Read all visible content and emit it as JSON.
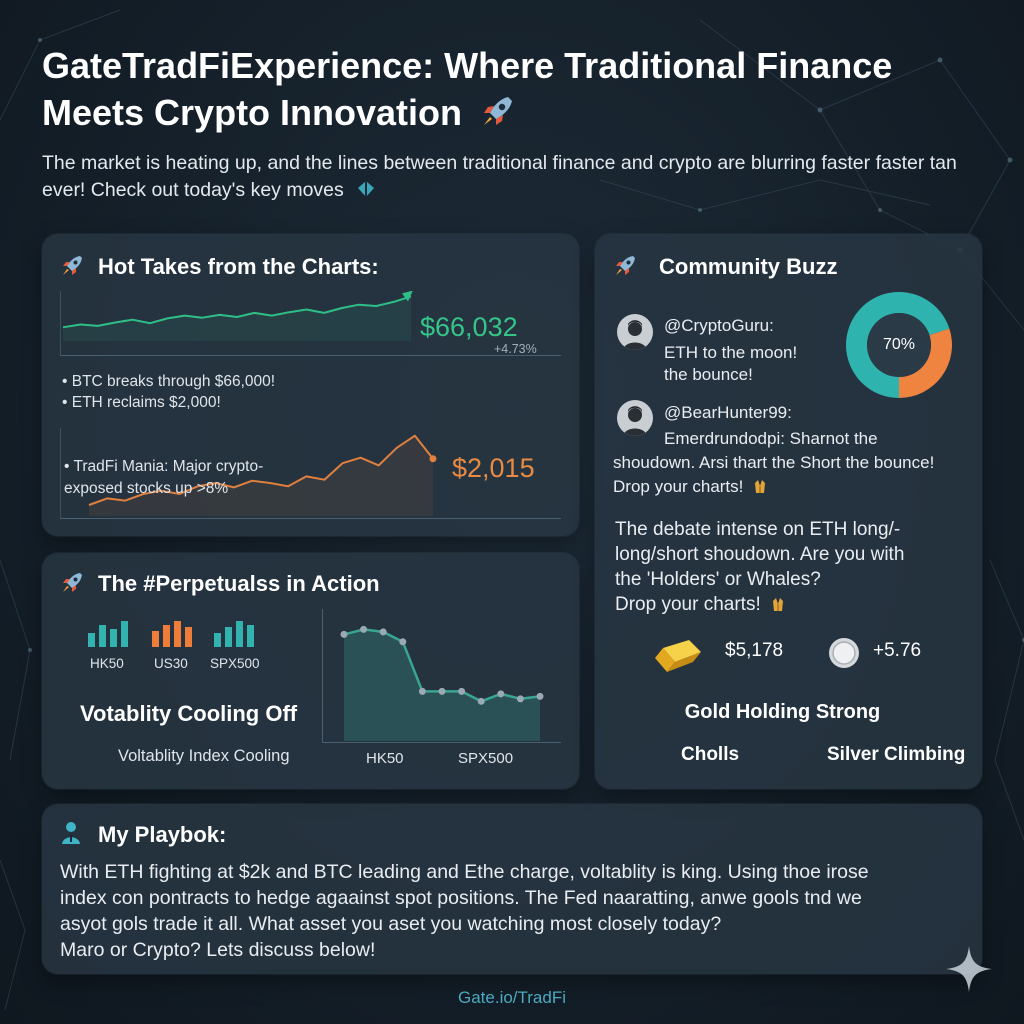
{
  "header": {
    "title": "GateTradFiExperience: Where Traditional Finance Meets Crypto Innovation",
    "intro": "The market is heating up, and the lines between traditional finance and crypto are blurring faster faster tan ever! Check out today's key moves"
  },
  "hot_takes": {
    "title": "Hot Takes from the Charts:",
    "btc_price": "$66,032",
    "btc_change": "+4.73%",
    "bullets": [
      "• BTC breaks through $66,000!",
      "• ETH reclaims $2,000!"
    ],
    "tradfi_line1": "• TradFi Mania: Major crypto-",
    "tradfi_line2": "exposed stocks up >8%",
    "eth_price": "$2,015"
  },
  "perpetuals": {
    "title": "The #Perpetualss in Action",
    "indices": [
      "HK50",
      "US30",
      "SPX500"
    ],
    "volatility_heading": "Votablity Cooling Off",
    "volatility_sub": "Voltablity Index Cooling",
    "chart_labels": [
      "HK50",
      "SPX500"
    ]
  },
  "community": {
    "title": "Community Buzz",
    "post1_user": "@CryptoGuru:",
    "post1_line1": "ETH to the moon!",
    "post1_line2": "the bounce!",
    "donut_label": "70%",
    "post2_user": "@BearHunter99:",
    "post2_line1": "Emerdrundodpi: Sharnot the",
    "post2_line2": "shoudown. Arsi thart the Short the bounce!",
    "post2_line3": "Drop your charts!",
    "debate": [
      "The debate intense on ETH long/-",
      "long/short shoudown. Are you with",
      "the 'Holders' or Whales?",
      "Drop your charts!"
    ],
    "gold_price": "$5,178",
    "silver_change": "+5.76",
    "gold_heading": "Gold Holding Strong",
    "footer_left": "Cholls",
    "footer_right": "Silver Climbing"
  },
  "playbook": {
    "title": "My Playbok:",
    "lines": [
      "With ETH fighting at $2k and BTC leading and Ethe charge, voltablity is king. Using thoe irose",
      "index con pontracts to hedge agaainst spot positions. The Fed naaratting, anwe gools tnd we",
      "asyot gols trade  it all. What asset you aset you watching most closely today?",
      "Maro or Crypto? Lets discuss below!"
    ]
  },
  "footer": {
    "link": "Gate.io/TradFi"
  },
  "chart_data": [
    {
      "type": "line",
      "series": [
        {
          "values": [
            2.0,
            2.4,
            2.2,
            2.7,
            3.1,
            2.6,
            3.3,
            3.7,
            3.4,
            3.8,
            3.5,
            4.1,
            3.7,
            4.2,
            4.6,
            4.1,
            4.8,
            5.3,
            5.1,
            5.7,
            6.5
          ]
        }
      ],
      "color": "#2fbf86"
    },
    {
      "type": "line",
      "series": [
        {
          "values": [
            1.0,
            1.6,
            1.4,
            2.0,
            2.3,
            2.0,
            2.7,
            3.0,
            2.6,
            3.2,
            3.0,
            2.7,
            3.6,
            3.3,
            4.8,
            5.3,
            4.6,
            6.2,
            7.3,
            5.2
          ]
        }
      ],
      "color": "#e0803f"
    },
    {
      "type": "line",
      "series": [
        {
          "values": [
            4.3,
            4.5,
            4.4,
            4.0,
            2.0,
            2.0,
            2.0,
            1.6,
            1.9,
            1.7,
            1.8
          ]
        }
      ],
      "color": "#3aa592"
    },
    {
      "type": "pie",
      "values": [
        70,
        30
      ],
      "colors": [
        "#2fb3ae",
        "#ef8440"
      ],
      "label": "70%"
    }
  ]
}
